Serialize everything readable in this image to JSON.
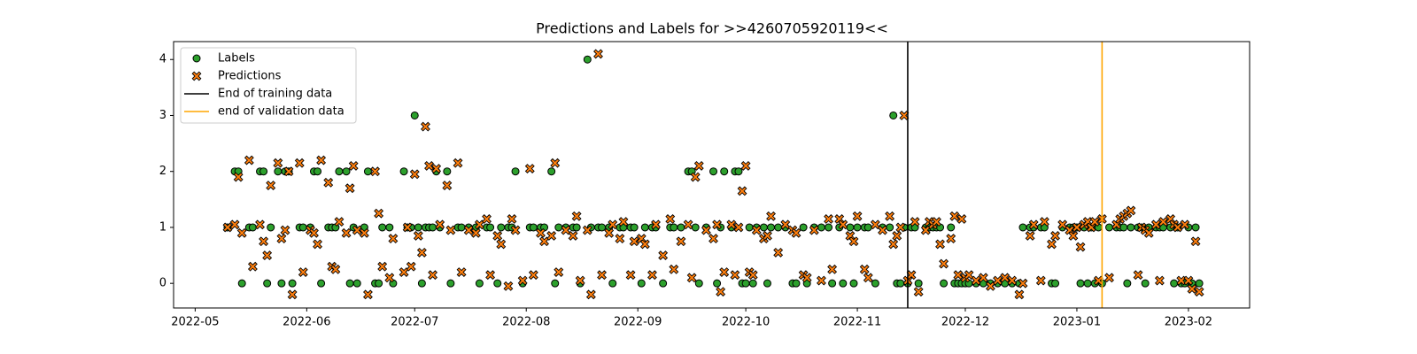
{
  "chart_data": {
    "type": "scatter",
    "title": "Predictions and Labels for >>4260705920119<<",
    "x": [
      "2022-05-10",
      "2022-05-12",
      "2022-05-13",
      "2022-05-14",
      "2022-05-16",
      "2022-05-17",
      "2022-05-19",
      "2022-05-20",
      "2022-05-21",
      "2022-05-22",
      "2022-05-24",
      "2022-05-25",
      "2022-05-26",
      "2022-05-27",
      "2022-05-28",
      "2022-05-30",
      "2022-05-31",
      "2022-06-02",
      "2022-06-03",
      "2022-06-04",
      "2022-06-05",
      "2022-06-07",
      "2022-06-08",
      "2022-06-09",
      "2022-06-10",
      "2022-06-12",
      "2022-06-13",
      "2022-06-14",
      "2022-06-15",
      "2022-06-17",
      "2022-06-18",
      "2022-06-20",
      "2022-06-21",
      "2022-06-22",
      "2022-06-24",
      "2022-06-25",
      "2022-06-28",
      "2022-06-29",
      "2022-06-30",
      "2022-07-01",
      "2022-07-02",
      "2022-07-03",
      "2022-07-04",
      "2022-07-05",
      "2022-07-06",
      "2022-07-07",
      "2022-07-08",
      "2022-07-10",
      "2022-07-11",
      "2022-07-13",
      "2022-07-14",
      "2022-07-16",
      "2022-07-18",
      "2022-07-19",
      "2022-07-21",
      "2022-07-22",
      "2022-07-24",
      "2022-07-25",
      "2022-07-27",
      "2022-07-28",
      "2022-07-29",
      "2022-07-31",
      "2022-08-02",
      "2022-08-03",
      "2022-08-05",
      "2022-08-06",
      "2022-08-08",
      "2022-08-09",
      "2022-08-10",
      "2022-08-12",
      "2022-08-14",
      "2022-08-15",
      "2022-08-16",
      "2022-08-18",
      "2022-08-19",
      "2022-08-21",
      "2022-08-22",
      "2022-08-24",
      "2022-08-25",
      "2022-08-27",
      "2022-08-28",
      "2022-08-30",
      "2022-08-31",
      "2022-09-02",
      "2022-09-03",
      "2022-09-05",
      "2022-09-06",
      "2022-09-08",
      "2022-09-10",
      "2022-09-11",
      "2022-09-13",
      "2022-09-15",
      "2022-09-16",
      "2022-09-17",
      "2022-09-18",
      "2022-09-20",
      "2022-09-22",
      "2022-09-23",
      "2022-09-24",
      "2022-09-25",
      "2022-09-27",
      "2022-09-28",
      "2022-09-29",
      "2022-09-30",
      "2022-10-01",
      "2022-10-02",
      "2022-10-03",
      "2022-10-04",
      "2022-10-06",
      "2022-10-07",
      "2022-10-08",
      "2022-10-10",
      "2022-10-12",
      "2022-10-14",
      "2022-10-15",
      "2022-10-17",
      "2022-10-18",
      "2022-10-20",
      "2022-10-22",
      "2022-10-24",
      "2022-10-25",
      "2022-10-27",
      "2022-10-28",
      "2022-10-30",
      "2022-10-31",
      "2022-11-01",
      "2022-11-03",
      "2022-11-04",
      "2022-11-06",
      "2022-11-08",
      "2022-11-10",
      "2022-11-11",
      "2022-11-12",
      "2022-11-13",
      "2022-11-14",
      "2022-11-15",
      "2022-11-16",
      "2022-11-17",
      "2022-11-18",
      "2022-11-20",
      "2022-11-21",
      "2022-11-22",
      "2022-11-23",
      "2022-11-24",
      "2022-11-25",
      "2022-11-27",
      "2022-11-28",
      "2022-11-29",
      "2022-11-30",
      "2022-12-01",
      "2022-12-02",
      "2022-12-04",
      "2022-12-06",
      "2022-12-08",
      "2022-12-10",
      "2022-12-12",
      "2022-12-14",
      "2022-12-16",
      "2022-12-17",
      "2022-12-19",
      "2022-12-20",
      "2022-12-22",
      "2022-12-23",
      "2022-12-25",
      "2022-12-26",
      "2022-12-28",
      "2022-12-30",
      "2022-12-31",
      "2023-01-01",
      "2023-01-02",
      "2023-01-03",
      "2023-01-04",
      "2023-01-05",
      "2023-01-06",
      "2023-01-07",
      "2023-01-08",
      "2023-01-10",
      "2023-01-12",
      "2023-01-13",
      "2023-01-14",
      "2023-01-15",
      "2023-01-16",
      "2023-01-18",
      "2023-01-19",
      "2023-01-20",
      "2023-01-21",
      "2023-01-23",
      "2023-01-24",
      "2023-01-25",
      "2023-01-27",
      "2023-01-28",
      "2023-01-29",
      "2023-01-30",
      "2023-01-31",
      "2023-02-01",
      "2023-02-02",
      "2023-02-03",
      "2023-02-04"
    ],
    "series": [
      {
        "name": "Labels",
        "color": "#2ca02c",
        "marker": "circle",
        "values": [
          1,
          2,
          2,
          0,
          1,
          1,
          2,
          2,
          0,
          1,
          2,
          0,
          2,
          2,
          0,
          1,
          1,
          1,
          2,
          2,
          0,
          1,
          1,
          1,
          2,
          2,
          0,
          1,
          0,
          1,
          2,
          0,
          0,
          1,
          1,
          0,
          2,
          1,
          1,
          3,
          1,
          0,
          1,
          1,
          1,
          2,
          1,
          2,
          0,
          1,
          1,
          1,
          1,
          0,
          1,
          1,
          0,
          1,
          1,
          1,
          2,
          0,
          1,
          1,
          1,
          1,
          2,
          0,
          1,
          1,
          1,
          1,
          0,
          4,
          1,
          1,
          1,
          1,
          0,
          1,
          1,
          1,
          1,
          0,
          1,
          1,
          1,
          0,
          1,
          1,
          1,
          2,
          2,
          1,
          0,
          1,
          2,
          0,
          1,
          2,
          1,
          2,
          2,
          0,
          0,
          1,
          0,
          1,
          1,
          0,
          1,
          1,
          1,
          0,
          0,
          1,
          0,
          1,
          1,
          1,
          0,
          1,
          0,
          1,
          0,
          1,
          1,
          1,
          0,
          1,
          1,
          3,
          0,
          0,
          1,
          0,
          1,
          1,
          0,
          1,
          1,
          1,
          1,
          1,
          0,
          1,
          0,
          0,
          0,
          0,
          0,
          0,
          0,
          0,
          0,
          0,
          0,
          0,
          1,
          1,
          1,
          1,
          1,
          0,
          0,
          1,
          1,
          1,
          1,
          0,
          1,
          0,
          1,
          0,
          1,
          0,
          1,
          1,
          1,
          1,
          0,
          1,
          1,
          1,
          0,
          1,
          1,
          1,
          1,
          1,
          0,
          1,
          0,
          0,
          1,
          0,
          1,
          0
        ]
      },
      {
        "name": "Predictions",
        "color": "#ff7f0e",
        "marker": "x",
        "values": [
          1,
          1.05,
          1.9,
          0.9,
          2.2,
          0.3,
          1.05,
          0.75,
          0.5,
          1.75,
          2.15,
          0.8,
          0.95,
          2,
          -0.2,
          2.15,
          0.2,
          0.95,
          0.9,
          0.7,
          2.2,
          1.8,
          0.3,
          0.25,
          1.1,
          0.9,
          1.7,
          2.1,
          0.95,
          0.9,
          -0.2,
          2,
          1.25,
          0.3,
          0.1,
          0.8,
          0.2,
          1,
          0.3,
          1.95,
          0.85,
          0.55,
          2.8,
          2.1,
          0.15,
          2.05,
          1.05,
          1.75,
          0.95,
          2.15,
          0.2,
          0.95,
          0.9,
          1.05,
          1.15,
          0.15,
          0.85,
          0.7,
          -0.05,
          1.15,
          0.95,
          0.05,
          2.05,
          0.15,
          0.9,
          0.75,
          0.85,
          2.15,
          0.2,
          0.95,
          0.85,
          1.2,
          0.05,
          0.95,
          -0.2,
          4.1,
          0.15,
          0.9,
          1.05,
          0.8,
          1.1,
          0.15,
          0.75,
          0.8,
          0.7,
          0.15,
          1.05,
          0.5,
          1.15,
          0.25,
          0.75,
          1.05,
          0.1,
          1.9,
          2.1,
          0.95,
          0.8,
          1.05,
          -0.15,
          0.2,
          1.05,
          0.15,
          1,
          1.65,
          2.1,
          0.2,
          0.15,
          0.95,
          0.8,
          0.85,
          1.2,
          0.55,
          1.05,
          0.95,
          0.9,
          0.15,
          0.1,
          0.95,
          0.05,
          1.15,
          0.25,
          1.15,
          1.05,
          0.85,
          0.75,
          1.2,
          0.25,
          0.1,
          1.05,
          0.95,
          1.2,
          0.7,
          0.85,
          1,
          3,
          0.05,
          0.15,
          1.1,
          -0.15,
          0.95,
          1.1,
          1.05,
          1.1,
          0.7,
          0.35,
          0.8,
          1.2,
          0.15,
          1.15,
          0.1,
          0.15,
          0.05,
          0.1,
          -0.05,
          0.05,
          0.1,
          0.05,
          -0.2,
          0,
          0.85,
          1.05,
          0.05,
          1.1,
          0.7,
          0.85,
          1.05,
          0.95,
          0.85,
          1,
          0.65,
          1.05,
          1.1,
          1,
          1.1,
          0.05,
          1.15,
          0.1,
          1.05,
          1.15,
          1.2,
          1.25,
          1.3,
          0.15,
          1,
          0.95,
          0.9,
          1.05,
          0.05,
          1.1,
          1.15,
          1.05,
          1,
          0.05,
          1.05,
          0.05,
          -0.1,
          0.75,
          -0.15
        ]
      }
    ],
    "vlines": [
      {
        "name": "End of training data",
        "color": "#000000",
        "x": "2022-11-15"
      },
      {
        "name": "end of validation data",
        "color": "#ffa500",
        "x": "2023-01-08"
      }
    ],
    "xlim": [
      "2022-04-25",
      "2023-02-18"
    ],
    "xticks": [
      "2022-05",
      "2022-06",
      "2022-07",
      "2022-08",
      "2022-09",
      "2022-10",
      "2022-11",
      "2022-12",
      "2023-01",
      "2023-02"
    ],
    "ylim": [
      -0.44,
      4.32
    ],
    "yticks": [
      0,
      1,
      2,
      3,
      4
    ],
    "legend": "upper left"
  }
}
